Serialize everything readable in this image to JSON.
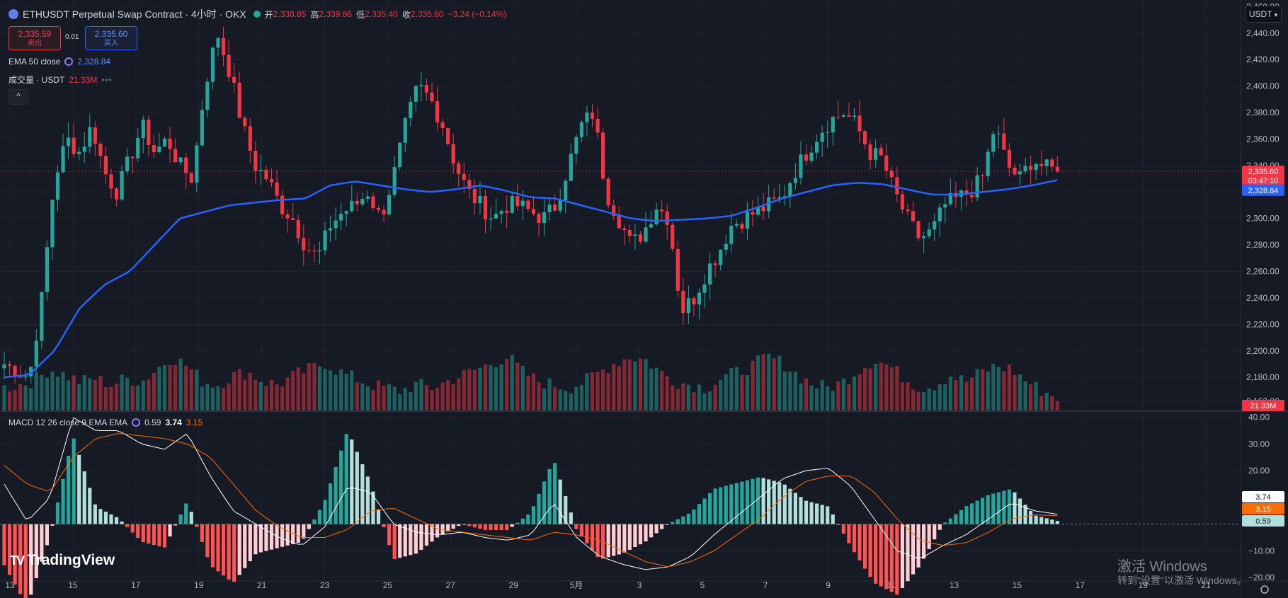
{
  "header": {
    "symbol_title": "ETHUSDT Perpetual Swap Contract · 4小时 · OKX",
    "ohlc": [
      {
        "label": "开",
        "value": "2,338.85"
      },
      {
        "label": "高",
        "value": "2,339.86"
      },
      {
        "label": "低",
        "value": "2,335.40"
      },
      {
        "label": "收",
        "value": "2,335.60"
      }
    ],
    "change": "−3.24 (−0.14%)",
    "currency_button": "USDT",
    "icon": "ethereum-icon"
  },
  "trade": {
    "sell_price": "2,335.59",
    "sell_label": "卖出",
    "spread": "0.01",
    "buy_price": "2,335.60",
    "buy_label": "买入"
  },
  "indicators": {
    "ema_label": "EMA 50 close",
    "ema_value": "2,328.84",
    "volume_label": "成交量 · USDT",
    "volume_value": "21.33M",
    "macd_label": "MACD 12 26 close 9 EMA EMA",
    "macd_values": [
      "0.59",
      "3.74",
      "3.15"
    ]
  },
  "price_badges": {
    "last": "2,335.60",
    "countdown": "03:47:10",
    "ema": "2,328.84",
    "volume": "21.33M",
    "macd_line": "3.74",
    "signal_line": "3.15",
    "histogram": "0.59"
  },
  "colors": {
    "up": "#26a69a",
    "down": "#f23645",
    "ema": "#2962ff",
    "macd": "#ffffff",
    "signal": "#ff6d00",
    "background": "#161a25"
  },
  "branding": {
    "logo_text": "TradingView"
  },
  "windows_watermark": {
    "line1": "激活 Windows",
    "line2": "转到\"设置\"以激活 Windows。"
  },
  "chart_data": {
    "type": "candlestick",
    "price_axis": {
      "ticks": [
        "2,460.00",
        "2,440.00",
        "2,420.00",
        "2,400.00",
        "2,380.00",
        "2,360.00",
        "2,340.00",
        "2,320.00",
        "2,300.00",
        "2,280.00",
        "2,260.00",
        "2,240.00",
        "2,220.00",
        "2,200.00",
        "2,180.00",
        "2,162.00"
      ],
      "range": [
        2155,
        2465
      ]
    },
    "macd_axis": {
      "ticks": [
        "40.00",
        "30.00",
        "20.00",
        "10.00",
        "−10.00",
        "−20.00"
      ],
      "range": [
        -21,
        42
      ]
    },
    "x_ticks": [
      "13",
      "15",
      "17",
      "19",
      "21",
      "23",
      "25",
      "27",
      "29",
      "5月",
      "3",
      "5",
      "7",
      "9",
      "11",
      "13",
      "15",
      "17",
      "19",
      "21"
    ],
    "anchors": [
      2190,
      2185,
      2180,
      2240,
      2330,
      2360,
      2350,
      2370,
      2335,
      2320,
      2345,
      2370,
      2350,
      2360,
      2340,
      2330,
      2400,
      2440,
      2410,
      2370,
      2340,
      2330,
      2310,
      2300,
      2280,
      2270,
      2295,
      2305,
      2310,
      2320,
      2300,
      2330,
      2370,
      2400,
      2390,
      2370,
      2340,
      2320,
      2310,
      2300,
      2310,
      2310,
      2305,
      2300,
      2310,
      2340,
      2370,
      2380,
      2320,
      2300,
      2280,
      2290,
      2310,
      2300,
      2230,
      2240,
      2260,
      2275,
      2295,
      2300,
      2305,
      2310,
      2315,
      2335,
      2350,
      2365,
      2375,
      2380,
      2370,
      2350,
      2345,
      2320,
      2300,
      2285,
      2290,
      2310,
      2315,
      2320,
      2330,
      2370,
      2340,
      2330,
      2345,
      2338,
      2336
    ],
    "ema_anchors": [
      2180,
      2182,
      2200,
      2232,
      2250,
      2260,
      2280,
      2300,
      2305,
      2310,
      2312,
      2314,
      2315,
      2325,
      2328,
      2325,
      2322,
      2320,
      2322,
      2325,
      2321,
      2316,
      2315,
      2310,
      2305,
      2300,
      2298,
      2299,
      2300,
      2302,
      2308,
      2315,
      2320,
      2325,
      2327,
      2326,
      2322,
      2318,
      2318,
      2320,
      2322,
      2325,
      2329
    ],
    "macd_anchors": [
      15,
      1,
      10,
      40,
      35,
      35,
      30,
      28,
      34,
      18,
      5,
      0,
      -5,
      -8,
      -1,
      14,
      12,
      0,
      -3,
      -4,
      -3,
      -5,
      -6,
      -4,
      8,
      -5,
      -12,
      -15,
      -17,
      -16,
      -12,
      -4,
      3,
      10,
      17,
      20,
      21,
      14,
      2,
      -10,
      -13,
      -8,
      -4,
      2,
      8,
      5,
      3.7
    ],
    "signal_anchors": [
      22,
      15,
      12,
      25,
      32,
      34,
      33,
      32,
      30,
      25,
      15,
      5,
      -1,
      -5,
      -5,
      -2,
      5,
      6,
      2,
      -2,
      -3,
      -4,
      -5,
      -6,
      -3,
      -4,
      -6,
      -10,
      -14,
      -16,
      -14,
      -10,
      -4,
      2,
      10,
      16,
      18,
      18,
      12,
      2,
      -6,
      -8,
      -7,
      -3,
      2,
      3.5,
      3.15
    ],
    "volume_anchors": [
      10,
      12,
      15,
      22,
      18,
      14,
      16,
      12,
      16,
      14,
      22,
      30,
      24,
      14,
      12,
      18,
      20,
      14,
      12,
      18,
      22,
      26,
      20,
      16,
      12,
      10,
      8,
      12,
      10,
      14,
      18,
      22,
      26,
      30,
      20,
      14,
      12,
      10,
      14,
      20,
      26,
      30,
      28,
      20,
      14,
      12,
      10,
      16,
      20,
      24,
      30,
      26,
      18,
      12,
      10,
      14,
      22,
      28,
      24,
      16,
      10,
      12,
      18,
      14,
      20,
      24,
      22,
      14,
      8,
      4
    ],
    "last_price": 2335.6,
    "ema_last": 2328.84
  }
}
